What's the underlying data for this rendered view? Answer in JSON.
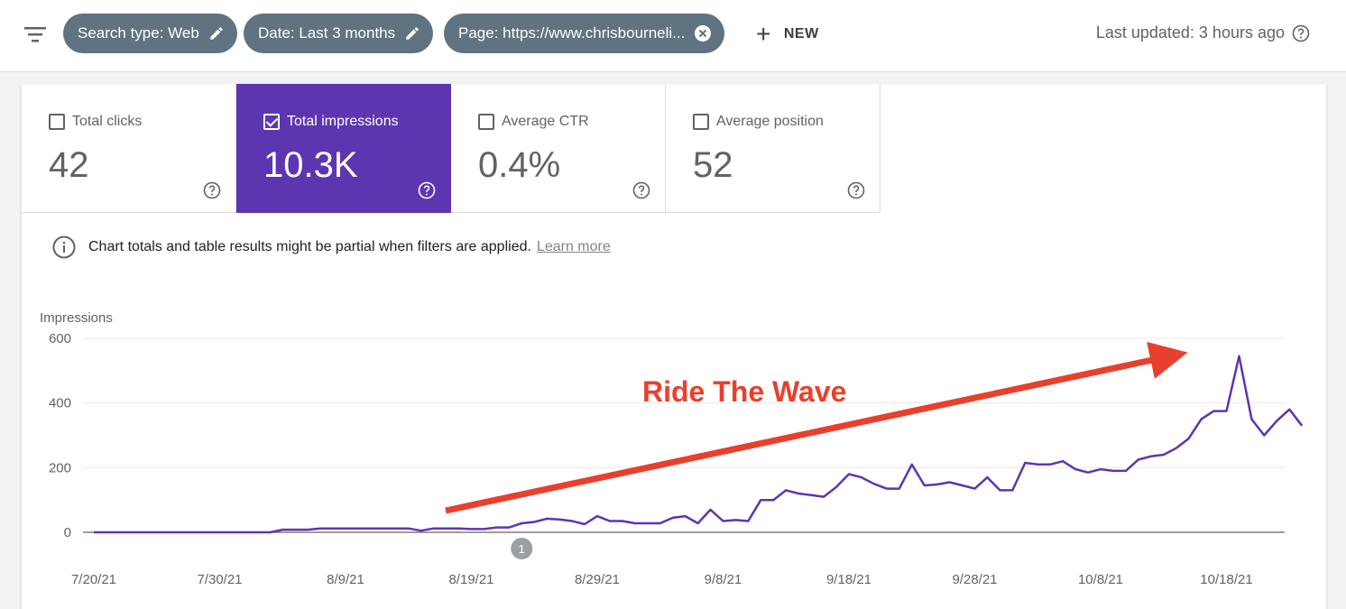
{
  "toolbar": {
    "chips": [
      {
        "label": "Search type: Web",
        "action": "edit"
      },
      {
        "label": "Date: Last 3 months",
        "action": "edit"
      },
      {
        "label": "Page: https://www.chrisbourneli...",
        "action": "remove"
      }
    ],
    "new_label": "NEW",
    "last_updated": "Last updated: 3 hours ago"
  },
  "metrics": [
    {
      "label": "Total clicks",
      "value": "42",
      "checked": false
    },
    {
      "label": "Total impressions",
      "value": "10.3K",
      "checked": true
    },
    {
      "label": "Average CTR",
      "value": "0.4%",
      "checked": false
    },
    {
      "label": "Average position",
      "value": "52",
      "checked": false
    }
  ],
  "notice": {
    "text": "Chart totals and table results might be partial when filters are applied.",
    "link": "Learn more"
  },
  "colors": {
    "accent": "#5e35b1",
    "chip": "#5f7380",
    "line": "#5e35b1",
    "annotation": "#e8402c"
  },
  "chart_data": {
    "type": "line",
    "ylabel": "Impressions",
    "ylim": [
      0,
      600
    ],
    "y_ticks": [
      0,
      200,
      400,
      600
    ],
    "x_tick_labels": [
      "7/20/21",
      "7/30/21",
      "8/9/21",
      "8/19/21",
      "8/29/21",
      "9/8/21",
      "9/18/21",
      "9/28/21",
      "10/8/21",
      "10/18/21"
    ],
    "x_start_label": "7/20/21",
    "values": [
      0,
      0,
      0,
      0,
      0,
      0,
      0,
      0,
      0,
      0,
      0,
      0,
      0,
      0,
      0,
      8,
      8,
      8,
      12,
      12,
      12,
      12,
      12,
      12,
      12,
      12,
      5,
      12,
      12,
      12,
      10,
      10,
      15,
      15,
      28,
      32,
      42,
      40,
      35,
      25,
      50,
      35,
      35,
      28,
      28,
      28,
      45,
      50,
      28,
      70,
      35,
      38,
      35,
      100,
      100,
      130,
      120,
      115,
      110,
      140,
      180,
      170,
      150,
      135,
      135,
      210,
      145,
      148,
      155,
      145,
      135,
      170,
      130,
      130,
      215,
      210,
      210,
      220,
      195,
      185,
      195,
      190,
      190,
      225,
      235,
      240,
      260,
      290,
      350,
      375,
      375,
      545,
      350,
      300,
      345,
      380,
      330
    ],
    "event_marker": {
      "label": "1",
      "x_index": 34
    },
    "annotation": {
      "text": "Ride The Wave"
    }
  }
}
